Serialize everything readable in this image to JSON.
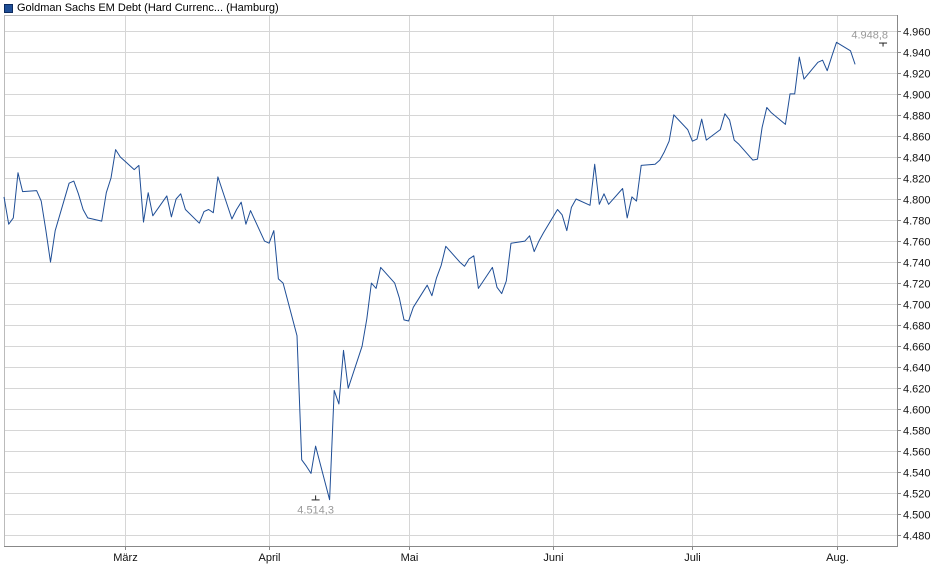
{
  "legend": {
    "label": "Goldman Sachs EM Debt (Hard Currenc... (Hamburg)"
  },
  "colors": {
    "line": "#1f4e96",
    "grid": "#d6d6d6",
    "axis": "#888888",
    "extreme": "#999999"
  },
  "chart_data": {
    "type": "line",
    "title": "",
    "xlabel": "",
    "ylabel": "",
    "ylim": [
      4.47,
      4.975
    ],
    "yticks": [
      4.48,
      4.5,
      4.52,
      4.54,
      4.56,
      4.58,
      4.6,
      4.62,
      4.64,
      4.66,
      4.68,
      4.7,
      4.72,
      4.74,
      4.76,
      4.78,
      4.8,
      4.82,
      4.84,
      4.86,
      4.88,
      4.9,
      4.92,
      4.94,
      4.96
    ],
    "ytick_labels": [
      "4.480",
      "4.500",
      "4.520",
      "4.540",
      "4.560",
      "4.580",
      "4.600",
      "4.620",
      "4.640",
      "4.660",
      "4.680",
      "4.700",
      "4.720",
      "4.740",
      "4.760",
      "4.780",
      "4.800",
      "4.820",
      "4.840",
      "4.860",
      "4.880",
      "4.900",
      "4.920",
      "4.940",
      "4.960"
    ],
    "xlim": [
      "2025-02-03",
      "2025-08-14"
    ],
    "xticks": [
      {
        "date": "2025-03-01",
        "label": "März"
      },
      {
        "date": "2025-04-01",
        "label": "April"
      },
      {
        "date": "2025-05-01",
        "label": "Mai"
      },
      {
        "date": "2025-06-01",
        "label": "Juni"
      },
      {
        "date": "2025-07-01",
        "label": "Juli"
      },
      {
        "date": "2025-08-01",
        "label": "Aug."
      }
    ],
    "grid": true,
    "legend_position": "top-left",
    "extremes": {
      "max": {
        "date": "2025-08-11",
        "value": 4.9488,
        "label": "4.948,8"
      },
      "min": {
        "date": "2025-04-11",
        "value": 4.5143,
        "label": "4.514,3"
      }
    },
    "series": [
      {
        "values": [
          [
            "2025-02-03",
            4.802
          ],
          [
            "2025-02-04",
            4.776
          ],
          [
            "2025-02-05",
            4.782
          ],
          [
            "2025-02-06",
            4.825
          ],
          [
            "2025-02-07",
            4.807
          ],
          [
            "2025-02-10",
            4.808
          ],
          [
            "2025-02-11",
            4.798
          ],
          [
            "2025-02-12",
            4.77
          ],
          [
            "2025-02-13",
            4.74
          ],
          [
            "2025-02-14",
            4.77
          ],
          [
            "2025-02-17",
            4.815
          ],
          [
            "2025-02-18",
            4.817
          ],
          [
            "2025-02-19",
            4.805
          ],
          [
            "2025-02-20",
            4.79
          ],
          [
            "2025-02-21",
            4.782
          ],
          [
            "2025-02-24",
            4.779
          ],
          [
            "2025-02-25",
            4.806
          ],
          [
            "2025-02-26",
            4.82
          ],
          [
            "2025-02-27",
            4.847
          ],
          [
            "2025-02-28",
            4.84
          ],
          [
            "2025-03-03",
            4.828
          ],
          [
            "2025-03-04",
            4.832
          ],
          [
            "2025-03-05",
            4.778
          ],
          [
            "2025-03-06",
            4.806
          ],
          [
            "2025-03-07",
            4.784
          ],
          [
            "2025-03-10",
            4.803
          ],
          [
            "2025-03-11",
            4.783
          ],
          [
            "2025-03-12",
            4.8
          ],
          [
            "2025-03-13",
            4.805
          ],
          [
            "2025-03-14",
            4.79
          ],
          [
            "2025-03-17",
            4.777
          ],
          [
            "2025-03-18",
            4.788
          ],
          [
            "2025-03-19",
            4.79
          ],
          [
            "2025-03-20",
            4.787
          ],
          [
            "2025-03-21",
            4.821
          ],
          [
            "2025-03-24",
            4.781
          ],
          [
            "2025-03-25",
            4.79
          ],
          [
            "2025-03-26",
            4.797
          ],
          [
            "2025-03-27",
            4.776
          ],
          [
            "2025-03-28",
            4.789
          ],
          [
            "2025-03-31",
            4.76
          ],
          [
            "2025-04-01",
            4.758
          ],
          [
            "2025-04-02",
            4.77
          ],
          [
            "2025-04-03",
            4.724
          ],
          [
            "2025-04-04",
            4.72
          ],
          [
            "2025-04-07",
            4.67
          ],
          [
            "2025-04-08",
            4.552
          ],
          [
            "2025-04-09",
            4.546
          ],
          [
            "2025-04-10",
            4.539
          ],
          [
            "2025-04-11",
            4.565
          ],
          [
            "2025-04-14",
            4.514
          ],
          [
            "2025-04-15",
            4.618
          ],
          [
            "2025-04-16",
            4.605
          ],
          [
            "2025-04-17",
            4.656
          ],
          [
            "2025-04-18",
            4.62
          ],
          [
            "2025-04-21",
            4.66
          ],
          [
            "2025-04-22",
            4.686
          ],
          [
            "2025-04-23",
            4.72
          ],
          [
            "2025-04-24",
            4.715
          ],
          [
            "2025-04-25",
            4.735
          ],
          [
            "2025-04-28",
            4.72
          ],
          [
            "2025-04-29",
            4.706
          ],
          [
            "2025-04-30",
            4.685
          ],
          [
            "2025-05-01",
            4.684
          ],
          [
            "2025-05-02",
            4.697
          ],
          [
            "2025-05-05",
            4.718
          ],
          [
            "2025-05-06",
            4.708
          ],
          [
            "2025-05-07",
            4.725
          ],
          [
            "2025-05-08",
            4.737
          ],
          [
            "2025-05-09",
            4.755
          ],
          [
            "2025-05-12",
            4.74
          ],
          [
            "2025-05-13",
            4.736
          ],
          [
            "2025-05-14",
            4.743
          ],
          [
            "2025-05-15",
            4.746
          ],
          [
            "2025-05-16",
            4.715
          ],
          [
            "2025-05-19",
            4.735
          ],
          [
            "2025-05-20",
            4.716
          ],
          [
            "2025-05-21",
            4.71
          ],
          [
            "2025-05-22",
            4.722
          ],
          [
            "2025-05-23",
            4.758
          ],
          [
            "2025-05-26",
            4.76
          ],
          [
            "2025-05-27",
            4.765
          ],
          [
            "2025-05-28",
            4.75
          ],
          [
            "2025-05-29",
            4.76
          ],
          [
            "2025-05-30",
            4.768
          ],
          [
            "2025-06-02",
            4.79
          ],
          [
            "2025-06-03",
            4.785
          ],
          [
            "2025-06-04",
            4.77
          ],
          [
            "2025-06-05",
            4.792
          ],
          [
            "2025-06-06",
            4.8
          ],
          [
            "2025-06-09",
            4.794
          ],
          [
            "2025-06-10",
            4.833
          ],
          [
            "2025-06-11",
            4.795
          ],
          [
            "2025-06-12",
            4.805
          ],
          [
            "2025-06-13",
            4.795
          ],
          [
            "2025-06-16",
            4.81
          ],
          [
            "2025-06-17",
            4.782
          ],
          [
            "2025-06-18",
            4.802
          ],
          [
            "2025-06-19",
            4.798
          ],
          [
            "2025-06-20",
            4.832
          ],
          [
            "2025-06-23",
            4.833
          ],
          [
            "2025-06-24",
            4.837
          ],
          [
            "2025-06-25",
            4.845
          ],
          [
            "2025-06-26",
            4.855
          ],
          [
            "2025-06-27",
            4.88
          ],
          [
            "2025-06-30",
            4.866
          ],
          [
            "2025-07-01",
            4.855
          ],
          [
            "2025-07-02",
            4.857
          ],
          [
            "2025-07-03",
            4.876
          ],
          [
            "2025-07-04",
            4.856
          ],
          [
            "2025-07-07",
            4.866
          ],
          [
            "2025-07-08",
            4.881
          ],
          [
            "2025-07-09",
            4.875
          ],
          [
            "2025-07-10",
            4.856
          ],
          [
            "2025-07-11",
            4.852
          ],
          [
            "2025-07-14",
            4.837
          ],
          [
            "2025-07-15",
            4.838
          ],
          [
            "2025-07-16",
            4.868
          ],
          [
            "2025-07-17",
            4.887
          ],
          [
            "2025-07-18",
            4.882
          ],
          [
            "2025-07-21",
            4.871
          ],
          [
            "2025-07-22",
            4.9
          ],
          [
            "2025-07-23",
            4.9
          ],
          [
            "2025-07-24",
            4.935
          ],
          [
            "2025-07-25",
            4.914
          ],
          [
            "2025-07-28",
            4.93
          ],
          [
            "2025-07-29",
            4.932
          ],
          [
            "2025-07-30",
            4.922
          ],
          [
            "2025-07-31",
            4.936
          ],
          [
            "2025-08-01",
            4.949
          ],
          [
            "2025-08-04",
            4.941
          ],
          [
            "2025-08-05",
            4.928
          ]
        ]
      }
    ]
  }
}
